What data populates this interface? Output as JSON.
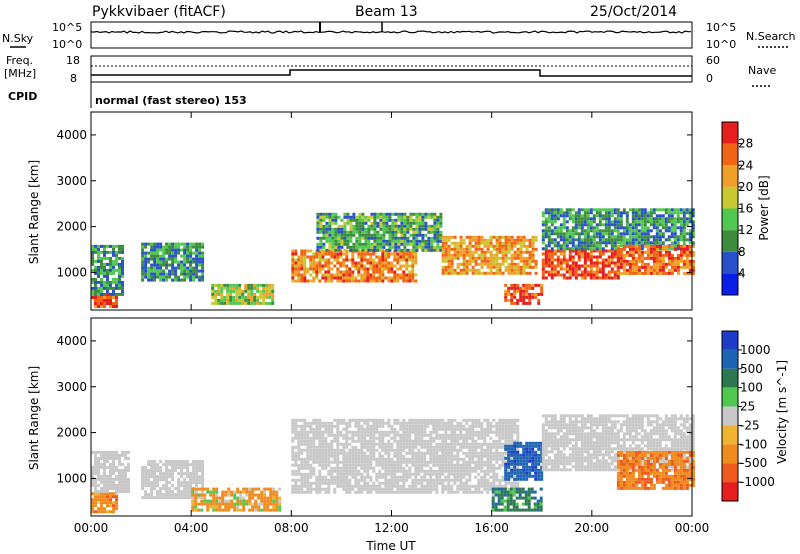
{
  "header": {
    "station": "Pykkvibaer (fitACF)",
    "beam": "Beam 13",
    "date": "25/Oct/2014"
  },
  "strip_panels": {
    "nsky": {
      "label": "N.Sky",
      "ticks": [
        "10^5",
        "10^0"
      ],
      "right_ticks": [
        "10^5",
        "10^0"
      ],
      "right_label": "N.Search"
    },
    "freq": {
      "label_line1": "Freq.",
      "label_line2": "[MHz]",
      "ticks": [
        "18",
        "8"
      ],
      "right_ticks": [
        "60",
        "0"
      ],
      "right_label": "Nave"
    },
    "cpid": {
      "label": "CPID",
      "text": "normal (fast stereo) 153"
    }
  },
  "x_axis": {
    "ticks": [
      "00:00",
      "04:00",
      "08:00",
      "12:00",
      "16:00",
      "20:00",
      "00:00"
    ],
    "label": "Time UT"
  },
  "y_axis": {
    "label": "Slant Range [km]",
    "ticks": [
      "1000",
      "2000",
      "3000",
      "4000"
    ]
  },
  "power_scale": {
    "label": "Power [dB]",
    "ticks": [
      "4",
      "8",
      "12",
      "16",
      "20",
      "24",
      "28"
    ],
    "colors": [
      "#0a1ee6",
      "#2850c8",
      "#3c8c3c",
      "#50c850",
      "#c8c832",
      "#f0a028",
      "#f06414",
      "#e61e1e"
    ]
  },
  "velocity_scale": {
    "label": "Velocity [m s^-1]",
    "ticks": [
      "1000",
      "500",
      "100",
      "25",
      "-25",
      "-100",
      "-500",
      "-1000"
    ],
    "colors": [
      "#1e3cc8",
      "#1e64b4",
      "#2d7850",
      "#50c850",
      "#c8c8c8",
      "#f0b432",
      "#f08c1e",
      "#f05a1e",
      "#e61e1e"
    ]
  },
  "chart_data": [
    {
      "type": "heatmap",
      "title": "",
      "xlabel": "",
      "ylabel": "Slant Range [km]",
      "xlim": [
        0,
        24
      ],
      "ylim": [
        180,
        4500
      ],
      "colorbar_label": "Power [dB]",
      "colorbar_range": [
        0,
        30
      ],
      "regions": [
        {
          "t": [
            0.0,
            1.0
          ],
          "r": [
            250,
            550
          ],
          "value": 28
        },
        {
          "t": [
            0.0,
            1.3
          ],
          "r": [
            550,
            1600
          ],
          "value": 10
        },
        {
          "t": [
            2.0,
            4.4
          ],
          "r": [
            850,
            1650
          ],
          "value": 10
        },
        {
          "t": [
            4.8,
            7.2
          ],
          "r": [
            300,
            750
          ],
          "value": 16
        },
        {
          "t": [
            8.0,
            13.0
          ],
          "r": [
            800,
            1500
          ],
          "value": 24
        },
        {
          "t": [
            9.0,
            14.0
          ],
          "r": [
            1500,
            2300
          ],
          "value": 12
        },
        {
          "t": [
            14.0,
            17.8
          ],
          "r": [
            1000,
            1800
          ],
          "value": 22
        },
        {
          "t": [
            16.5,
            18.0
          ],
          "r": [
            350,
            750
          ],
          "value": 28
        },
        {
          "t": [
            18.0,
            21.0
          ],
          "r": [
            900,
            1500
          ],
          "value": 28
        },
        {
          "t": [
            18.0,
            24.0
          ],
          "r": [
            1500,
            2400
          ],
          "value": 10
        },
        {
          "t": [
            21.0,
            24.0
          ],
          "r": [
            1000,
            1600
          ],
          "value": 26
        }
      ]
    },
    {
      "type": "heatmap",
      "title": "",
      "xlabel": "Time UT",
      "ylabel": "Slant Range [km]",
      "xlim": [
        0,
        24
      ],
      "ylim": [
        180,
        4500
      ],
      "colorbar_label": "Velocity [m s^-1]",
      "colorbar_range": [
        -1000,
        1000
      ],
      "regions": [
        {
          "t": [
            0.0,
            1.0
          ],
          "r": [
            250,
            700
          ],
          "value": -300
        },
        {
          "t": [
            0.0,
            1.5
          ],
          "r": [
            700,
            1600
          ],
          "value": 0
        },
        {
          "t": [
            2.0,
            4.4
          ],
          "r": [
            600,
            1400
          ],
          "value": 0
        },
        {
          "t": [
            4.0,
            7.5
          ],
          "r": [
            300,
            800
          ],
          "value": -200
        },
        {
          "t": [
            8.0,
            17.0
          ],
          "r": [
            700,
            2300
          ],
          "value": 0
        },
        {
          "t": [
            16.0,
            18.0
          ],
          "r": [
            300,
            800
          ],
          "value": 300
        },
        {
          "t": [
            16.5,
            18.0
          ],
          "r": [
            1000,
            1800
          ],
          "value": 800
        },
        {
          "t": [
            18.0,
            24.0
          ],
          "r": [
            1200,
            2400
          ],
          "value": 0
        },
        {
          "t": [
            21.0,
            24.0
          ],
          "r": [
            800,
            1600
          ],
          "value": -400
        }
      ]
    }
  ]
}
